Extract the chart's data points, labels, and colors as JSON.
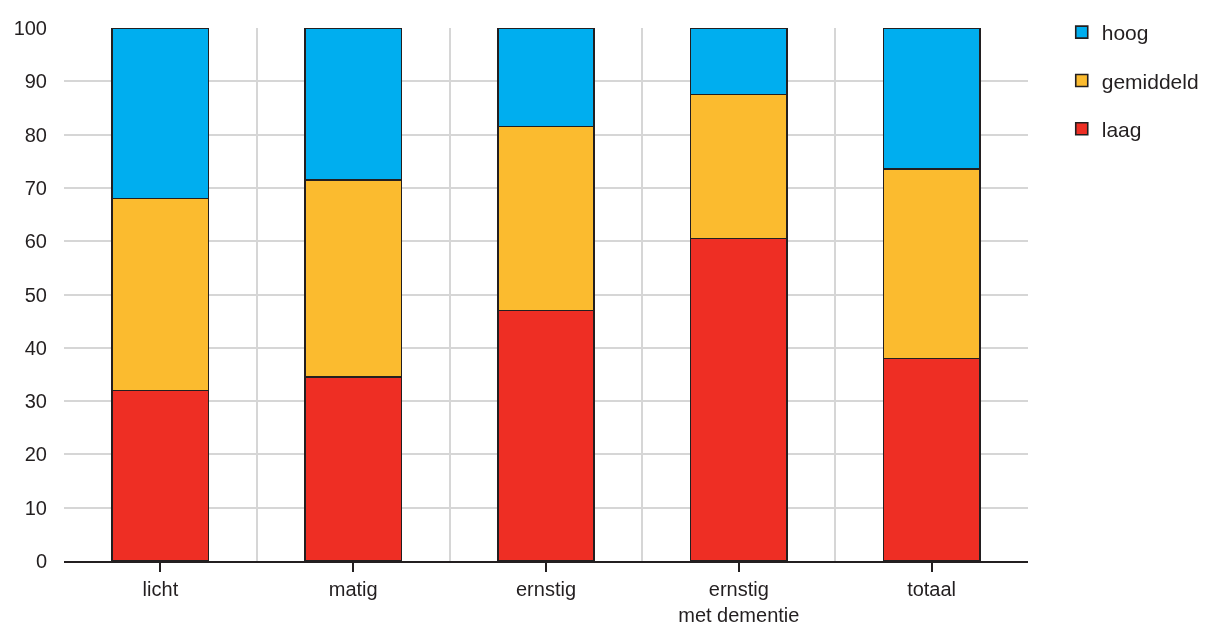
{
  "chart_data": {
    "type": "bar",
    "stacked": true,
    "categories": [
      "licht",
      "matig",
      "ernstig",
      "ernstig\nmet dementie",
      "totaal"
    ],
    "series": [
      {
        "name": "laag",
        "color": "#ee2e24",
        "values": [
          32,
          34.5,
          47,
          60.5,
          38
        ]
      },
      {
        "name": "gemiddeld",
        "color": "#fbbb2f",
        "values": [
          36,
          37,
          34.5,
          27,
          35.5
        ]
      },
      {
        "name": "hoog",
        "color": "#00aeef",
        "values": [
          32,
          28.5,
          18.5,
          12.5,
          26.5
        ]
      }
    ],
    "ylim": [
      0,
      100
    ],
    "yticks": [
      0,
      10,
      20,
      30,
      40,
      50,
      60,
      70,
      80,
      90,
      100
    ],
    "grid": true,
    "legend": "top right"
  }
}
